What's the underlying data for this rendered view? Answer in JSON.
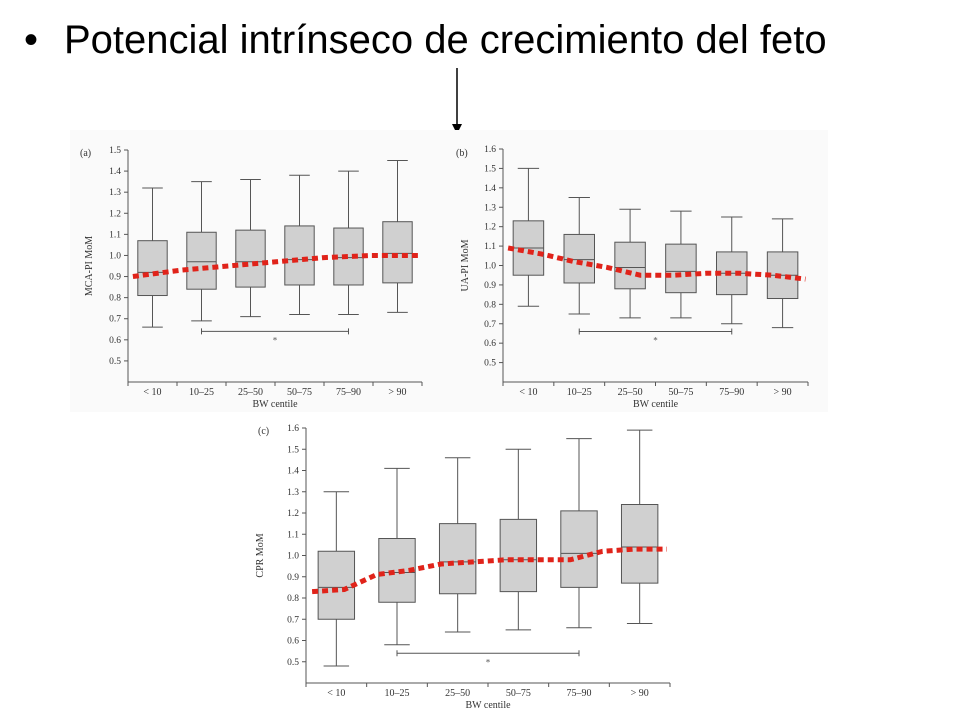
{
  "slide": {
    "bullet": "•",
    "title": "Potencial intrínseco de crecimiento del feto"
  },
  "colors": {
    "box_fill": "#d0d0d0",
    "box_stroke": "#555555",
    "trend": "#e0231a",
    "axis": "#555555",
    "arrow": "#000000"
  },
  "chart_data": [
    {
      "type": "box",
      "panel_label": "(a)",
      "ylabel": "MCA-PI MoM",
      "xlabel": "BW centile",
      "categories": [
        "< 10",
        "10–25",
        "25–50",
        "50–75",
        "75–90",
        "> 90"
      ],
      "ylim": [
        0.4,
        1.5
      ],
      "yticks": [
        "0.5",
        "0.6",
        "0.7",
        "0.8",
        "0.9",
        "1.0",
        "1.1",
        "1.2",
        "1.3",
        "1.4",
        "1.5"
      ],
      "boxes": [
        {
          "whisker_low": 0.66,
          "q1": 0.81,
          "median": 0.92,
          "q3": 1.07,
          "whisker_high": 1.32
        },
        {
          "whisker_low": 0.69,
          "q1": 0.84,
          "median": 0.97,
          "q3": 1.11,
          "whisker_high": 1.35
        },
        {
          "whisker_low": 0.71,
          "q1": 0.85,
          "median": 0.97,
          "q3": 1.12,
          "whisker_high": 1.36
        },
        {
          "whisker_low": 0.72,
          "q1": 0.86,
          "median": 0.98,
          "q3": 1.14,
          "whisker_high": 1.38
        },
        {
          "whisker_low": 0.72,
          "q1": 0.86,
          "median": 0.99,
          "q3": 1.13,
          "whisker_high": 1.4
        },
        {
          "whisker_low": 0.73,
          "q1": 0.87,
          "median": 1.01,
          "q3": 1.16,
          "whisker_high": 1.45
        }
      ],
      "trend": [
        0.9,
        0.93,
        0.95,
        0.97,
        0.99,
        1.0,
        1.0
      ],
      "significance": {
        "from": 1,
        "to": 4,
        "level": 0.64,
        "mark": "*"
      }
    },
    {
      "type": "box",
      "panel_label": "(b)",
      "ylabel": "UA-PI MoM",
      "xlabel": "BW centile",
      "categories": [
        "< 10",
        "10–25",
        "25–50",
        "50–75",
        "75–90",
        "> 90"
      ],
      "ylim": [
        0.4,
        1.6
      ],
      "yticks": [
        "0.5",
        "0.6",
        "0.7",
        "0.8",
        "0.9",
        "1.0",
        "1.1",
        "1.2",
        "1.3",
        "1.4",
        "1.5",
        "1.6"
      ],
      "boxes": [
        {
          "whisker_low": 0.79,
          "q1": 0.95,
          "median": 1.09,
          "q3": 1.23,
          "whisker_high": 1.5
        },
        {
          "whisker_low": 0.75,
          "q1": 0.91,
          "median": 1.03,
          "q3": 1.16,
          "whisker_high": 1.35
        },
        {
          "whisker_low": 0.73,
          "q1": 0.88,
          "median": 0.99,
          "q3": 1.12,
          "whisker_high": 1.29
        },
        {
          "whisker_low": 0.73,
          "q1": 0.86,
          "median": 0.97,
          "q3": 1.11,
          "whisker_high": 1.28
        },
        {
          "whisker_low": 0.7,
          "q1": 0.85,
          "median": 0.96,
          "q3": 1.07,
          "whisker_high": 1.25
        },
        {
          "whisker_low": 0.68,
          "q1": 0.83,
          "median": 0.95,
          "q3": 1.07,
          "whisker_high": 1.24
        }
      ],
      "trend": [
        1.09,
        1.06,
        1.02,
        0.99,
        0.95,
        0.95,
        0.96,
        0.96,
        0.95,
        0.93
      ],
      "significance": {
        "from": 1,
        "to": 4,
        "level": 0.66,
        "mark": "*"
      }
    },
    {
      "type": "box",
      "panel_label": "(c)",
      "ylabel": "CPR MoM",
      "xlabel": "BW centile",
      "categories": [
        "< 10",
        "10–25",
        "25–50",
        "50–75",
        "75–90",
        "> 90"
      ],
      "ylim": [
        0.4,
        1.6
      ],
      "yticks": [
        "0.5",
        "0.6",
        "0.7",
        "0.8",
        "0.9",
        "1.0",
        "1.1",
        "1.2",
        "1.3",
        "1.4",
        "1.5",
        "1.6"
      ],
      "boxes": [
        {
          "whisker_low": 0.48,
          "q1": 0.7,
          "median": 0.85,
          "q3": 1.02,
          "whisker_high": 1.3
        },
        {
          "whisker_low": 0.58,
          "q1": 0.78,
          "median": 0.92,
          "q3": 1.08,
          "whisker_high": 1.41
        },
        {
          "whisker_low": 0.64,
          "q1": 0.82,
          "median": 0.97,
          "q3": 1.15,
          "whisker_high": 1.46
        },
        {
          "whisker_low": 0.65,
          "q1": 0.83,
          "median": 0.98,
          "q3": 1.17,
          "whisker_high": 1.5
        },
        {
          "whisker_low": 0.66,
          "q1": 0.85,
          "median": 1.01,
          "q3": 1.21,
          "whisker_high": 1.55
        },
        {
          "whisker_low": 0.68,
          "q1": 0.87,
          "median": 1.04,
          "q3": 1.24,
          "whisker_high": 1.59
        }
      ],
      "trend": [
        0.83,
        0.84,
        0.91,
        0.93,
        0.96,
        0.97,
        0.98,
        0.98,
        0.98,
        1.02,
        1.03,
        1.03
      ],
      "significance": {
        "from": 1,
        "to": 4,
        "level": 0.54,
        "mark": "*"
      }
    }
  ]
}
